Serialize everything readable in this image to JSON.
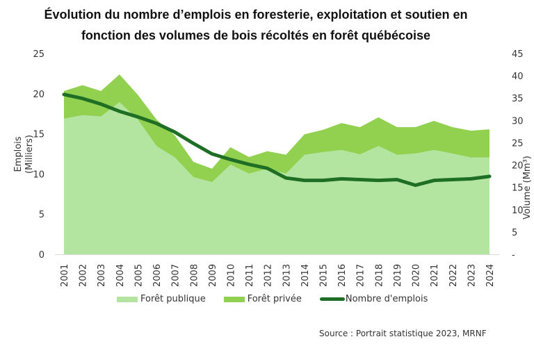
{
  "title_line1": "Évolution du nombre d’emplois en foresterie, exploitation et soutien en",
  "title_line2": "fonction des volumes de bois récoltés en forêt québécoise",
  "source": "Source : Portrait statistique 2023, MRNF",
  "colors": {
    "public": "#b3e5a1",
    "private": "#92d050",
    "emplois": "#1e6e25"
  },
  "chart_data": {
    "type": "area",
    "title": "Évolution du nombre d’emplois en foresterie, exploitation et soutien en fonction des volumes de bois récoltés en forêt québécoise",
    "categories": [
      "2001",
      "2002",
      "2003",
      "2004",
      "2005",
      "2006",
      "2007",
      "2008",
      "2009",
      "2010",
      "2011",
      "2012",
      "2013",
      "2014",
      "2015",
      "2016",
      "2017",
      "2018",
      "2019",
      "2020",
      "2021",
      "2022",
      "2023",
      "2024"
    ],
    "left_axis": {
      "label_line1": "Emplois",
      "label_line2": "(Milliers)",
      "range": [
        0,
        25
      ],
      "ticks": [
        "0",
        "5",
        "10",
        "15",
        "20",
        "25"
      ]
    },
    "right_axis": {
      "label": "Volume (Mm³)",
      "range": [
        0,
        45
      ],
      "ticks": [
        "-",
        "5",
        "10",
        "15",
        "20",
        "25",
        "30",
        "35",
        "40",
        "45"
      ]
    },
    "series": [
      {
        "name": "Forêt publique",
        "type": "stacked-area",
        "axis": "right",
        "values": [
          30.4,
          31.2,
          30.9,
          34.1,
          30.2,
          24.3,
          21.7,
          17.3,
          16.2,
          20.1,
          18.1,
          19.2,
          18.1,
          22.3,
          22.9,
          23.4,
          22.4,
          24.3,
          22.3,
          22.6,
          23.4,
          22.6,
          21.7,
          21.7
        ]
      },
      {
        "name": "Forêt privée",
        "type": "stacked-area",
        "axis": "right",
        "values": [
          6.2,
          6.7,
          5.7,
          6.2,
          5.5,
          5.9,
          4.9,
          3.4,
          3.0,
          3.9,
          3.7,
          3.9,
          4.2,
          4.6,
          5.0,
          6.0,
          6.1,
          6.4,
          6.2,
          5.9,
          6.5,
          5.9,
          6.0,
          6.3
        ]
      },
      {
        "name": "Nombre d'emplois",
        "type": "line",
        "axis": "left",
        "values": [
          19.9,
          19.4,
          18.7,
          17.8,
          17.1,
          16.3,
          15.2,
          13.8,
          12.5,
          11.8,
          11.2,
          10.7,
          9.5,
          9.2,
          9.2,
          9.4,
          9.3,
          9.2,
          9.3,
          8.6,
          9.2,
          9.3,
          9.4,
          9.7
        ]
      }
    ],
    "legend": [
      "Forêt publique",
      "Forêt privée",
      "Nombre d'emplois"
    ],
    "legend_position": "bottom",
    "grid": false
  }
}
